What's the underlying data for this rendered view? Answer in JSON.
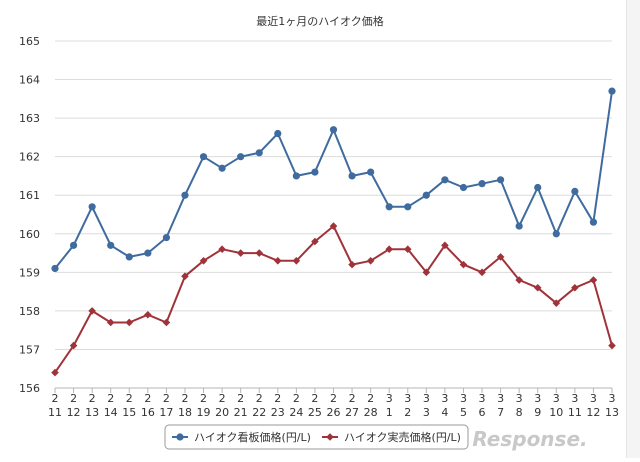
{
  "chart_data": {
    "type": "line",
    "title": "最近1ヶ月のハイオク価格",
    "ylim": [
      156,
      165
    ],
    "yticks": [
      156,
      157,
      158,
      159,
      160,
      161,
      162,
      163,
      164,
      165
    ],
    "grid": true,
    "legend_position": "bottom-center",
    "x": [
      {
        "month": "2",
        "day": "11"
      },
      {
        "month": "2",
        "day": "12"
      },
      {
        "month": "2",
        "day": "13"
      },
      {
        "month": "2",
        "day": "14"
      },
      {
        "month": "2",
        "day": "15"
      },
      {
        "month": "2",
        "day": "16"
      },
      {
        "month": "2",
        "day": "17"
      },
      {
        "month": "2",
        "day": "18"
      },
      {
        "month": "2",
        "day": "19"
      },
      {
        "month": "2",
        "day": "20"
      },
      {
        "month": "2",
        "day": "21"
      },
      {
        "month": "2",
        "day": "22"
      },
      {
        "month": "2",
        "day": "23"
      },
      {
        "month": "2",
        "day": "24"
      },
      {
        "month": "2",
        "day": "25"
      },
      {
        "month": "2",
        "day": "26"
      },
      {
        "month": "2",
        "day": "27"
      },
      {
        "month": "2",
        "day": "28"
      },
      {
        "month": "3",
        "day": "1"
      },
      {
        "month": "3",
        "day": "2"
      },
      {
        "month": "3",
        "day": "3"
      },
      {
        "month": "3",
        "day": "4"
      },
      {
        "month": "3",
        "day": "5"
      },
      {
        "month": "3",
        "day": "6"
      },
      {
        "month": "3",
        "day": "7"
      },
      {
        "month": "3",
        "day": "8"
      },
      {
        "month": "3",
        "day": "9"
      },
      {
        "month": "3",
        "day": "10"
      },
      {
        "month": "3",
        "day": "11"
      },
      {
        "month": "3",
        "day": "12"
      },
      {
        "month": "3",
        "day": "13"
      }
    ],
    "series": [
      {
        "name": "ハイオク看板価格(円/L)",
        "color": "#3f6b9e",
        "marker": "circle",
        "values": [
          159.1,
          159.7,
          160.7,
          159.7,
          159.4,
          159.5,
          159.9,
          161.0,
          162.0,
          161.7,
          162.0,
          162.1,
          162.6,
          161.5,
          161.6,
          162.7,
          161.5,
          161.6,
          160.7,
          160.7,
          161.0,
          161.4,
          161.2,
          161.3,
          161.4,
          160.2,
          161.2,
          160.0,
          161.1,
          160.3,
          163.7
        ]
      },
      {
        "name": "ハイオク実売価格(円/L)",
        "color": "#a0333a",
        "marker": "diamond",
        "values": [
          156.4,
          157.1,
          158.0,
          157.7,
          157.7,
          157.9,
          157.7,
          158.9,
          159.3,
          159.6,
          159.5,
          159.5,
          159.3,
          159.3,
          159.8,
          160.2,
          159.2,
          159.3,
          159.6,
          159.6,
          159.0,
          159.7,
          159.2,
          159.0,
          159.4,
          158.8,
          158.6,
          158.2,
          158.6,
          158.8,
          157.1
        ]
      }
    ]
  },
  "watermark": "Response."
}
